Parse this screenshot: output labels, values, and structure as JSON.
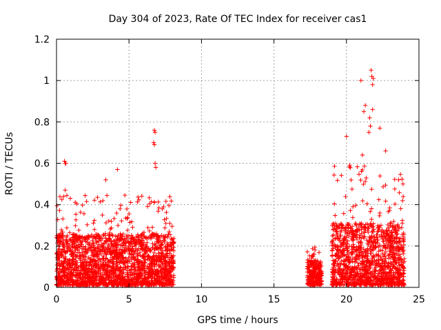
{
  "chart_data": {
    "type": "scatter",
    "title": "Day 304 of 2023, Rate Of TEC Index for receiver cas1",
    "xlabel": "GPS time / hours",
    "ylabel": "ROTI / TECUs",
    "xlim": [
      0,
      25
    ],
    "ylim": [
      0,
      1.2
    ],
    "xticks": [
      0,
      5,
      10,
      15,
      20,
      25
    ],
    "yticks": [
      0,
      0.2,
      0.4,
      0.6,
      0.8,
      1,
      1.2
    ],
    "xtick_labels": [
      "0",
      "5",
      "10",
      "15",
      "20",
      "25"
    ],
    "ytick_labels": [
      "0",
      "0.2",
      "0.4",
      "0.6",
      "0.8",
      "1",
      "1.2"
    ],
    "grid": true,
    "marker": "+",
    "color": "#ff0000",
    "series": [
      {
        "name": "ROTI",
        "segments": [
          {
            "x_start": 0.0,
            "x_end": 8.1,
            "typical_max": 0.25,
            "peak_max": 0.45
          },
          {
            "x_start": 17.3,
            "x_end": 18.3,
            "typical_max": 0.12,
            "peak_max": 0.2
          },
          {
            "x_start": 19.0,
            "x_end": 24.0,
            "typical_max": 0.3,
            "peak_max": 0.6
          }
        ],
        "notable_points": [
          {
            "x": 0.55,
            "y": 0.61
          },
          {
            "x": 0.6,
            "y": 0.6
          },
          {
            "x": 0.65,
            "y": 0.6
          },
          {
            "x": 0.6,
            "y": 0.47
          },
          {
            "x": 0.95,
            "y": 0.43
          },
          {
            "x": 3.4,
            "y": 0.52
          },
          {
            "x": 4.2,
            "y": 0.57
          },
          {
            "x": 6.75,
            "y": 0.76
          },
          {
            "x": 6.8,
            "y": 0.75
          },
          {
            "x": 6.7,
            "y": 0.7
          },
          {
            "x": 6.75,
            "y": 0.69
          },
          {
            "x": 6.8,
            "y": 0.6
          },
          {
            "x": 6.85,
            "y": 0.58
          },
          {
            "x": 20.0,
            "y": 0.73
          },
          {
            "x": 21.0,
            "y": 1.0
          },
          {
            "x": 21.1,
            "y": 0.64
          },
          {
            "x": 21.2,
            "y": 0.85
          },
          {
            "x": 21.3,
            "y": 0.88
          },
          {
            "x": 21.55,
            "y": 0.75
          },
          {
            "x": 21.6,
            "y": 0.82
          },
          {
            "x": 21.65,
            "y": 0.78
          },
          {
            "x": 21.7,
            "y": 1.05
          },
          {
            "x": 21.75,
            "y": 1.02
          },
          {
            "x": 21.8,
            "y": 0.98
          },
          {
            "x": 21.8,
            "y": 0.86
          },
          {
            "x": 21.85,
            "y": 1.01
          },
          {
            "x": 22.3,
            "y": 0.77
          },
          {
            "x": 22.7,
            "y": 0.66
          },
          {
            "x": 23.6,
            "y": 0.52
          },
          {
            "x": 23.9,
            "y": 0.5
          }
        ]
      }
    ]
  }
}
